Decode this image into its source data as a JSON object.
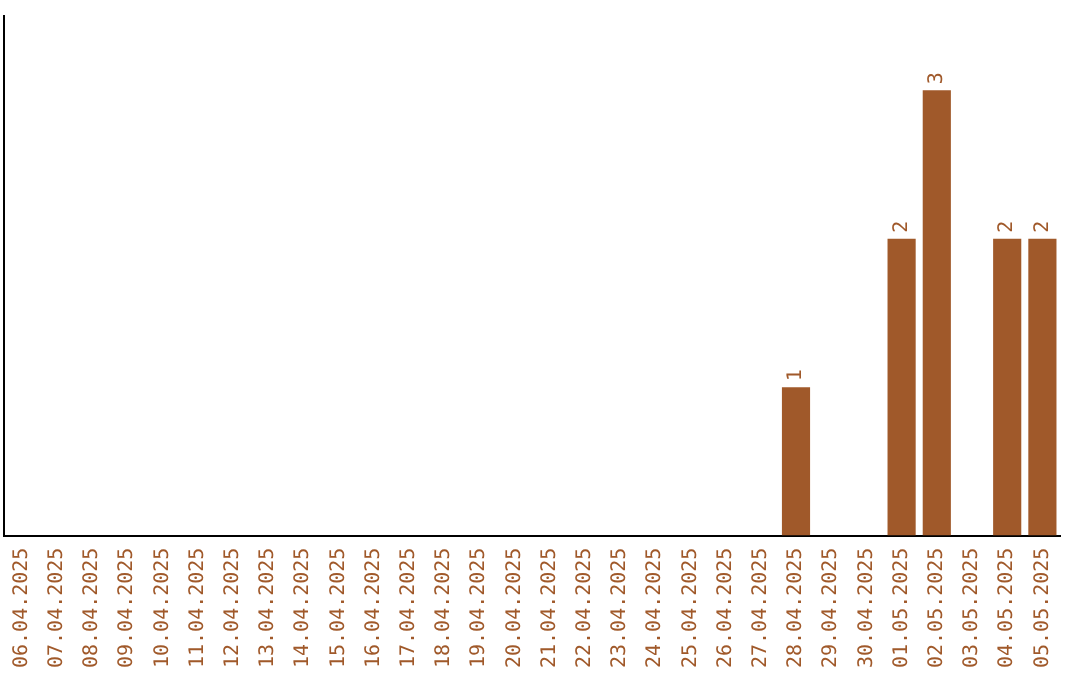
{
  "chart_data": {
    "type": "bar",
    "categories": [
      "06.04.2025",
      "07.04.2025",
      "08.04.2025",
      "09.04.2025",
      "10.04.2025",
      "11.04.2025",
      "12.04.2025",
      "13.04.2025",
      "14.04.2025",
      "15.04.2025",
      "16.04.2025",
      "17.04.2025",
      "18.04.2025",
      "19.04.2025",
      "20.04.2025",
      "21.04.2025",
      "22.04.2025",
      "23.04.2025",
      "24.04.2025",
      "25.04.2025",
      "26.04.2025",
      "27.04.2025",
      "28.04.2025",
      "29.04.2025",
      "30.04.2025",
      "01.05.2025",
      "02.05.2025",
      "03.05.2025",
      "04.05.2025",
      "05.05.2025"
    ],
    "values": [
      null,
      null,
      null,
      null,
      null,
      null,
      null,
      null,
      null,
      null,
      null,
      null,
      null,
      null,
      null,
      null,
      null,
      null,
      null,
      null,
      null,
      null,
      1,
      null,
      null,
      2,
      3,
      null,
      2,
      2
    ],
    "data_labels": true,
    "color": "#a0592a",
    "grid": false,
    "legend": false,
    "tick_labels": "x"
  }
}
